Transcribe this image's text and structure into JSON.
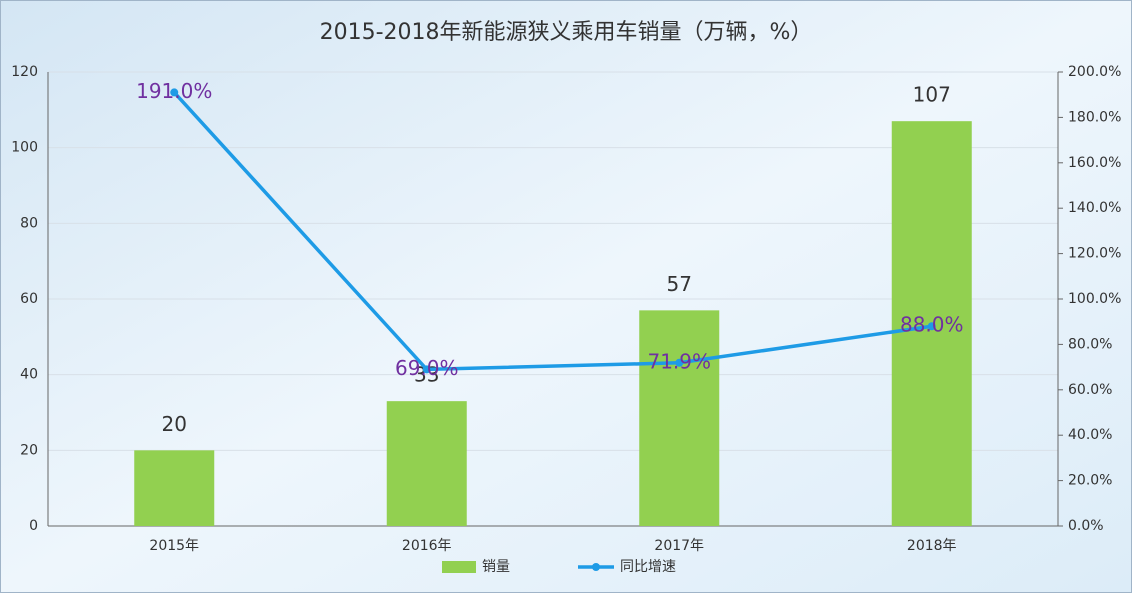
{
  "chart_data": {
    "type": "bar",
    "title": "2015-2018年新能源狭义乘用车销量（万辆，%）",
    "categories": [
      "2015年",
      "2016年",
      "2017年",
      "2018年"
    ],
    "series": [
      {
        "name": "销量",
        "color": "#92d050",
        "values": [
          20,
          33,
          57,
          107
        ]
      },
      {
        "name": "同比增速",
        "color": "#1e9be6",
        "type": "line",
        "axis": "y2",
        "values": [
          191.0,
          69.0,
          71.9,
          88.0
        ],
        "value_labels": [
          "191.0%",
          "69.0%",
          "71.9%",
          "88.0%"
        ],
        "label_color": "#7030a0"
      }
    ],
    "ylim": [
      0,
      120
    ],
    "yticks": [
      0,
      20,
      40,
      60,
      80,
      100,
      120
    ],
    "y2lim": [
      0,
      200
    ],
    "y2ticks": [
      {
        "value": 0,
        "label": "0.0%"
      },
      {
        "value": 20,
        "label": "20.0%"
      },
      {
        "value": 40,
        "label": "40.0%"
      },
      {
        "value": 60,
        "label": "60.0%"
      },
      {
        "value": 80,
        "label": "80.0%"
      },
      {
        "value": 100,
        "label": "100.0%"
      },
      {
        "value": 120,
        "label": "120.0%"
      },
      {
        "value": 140,
        "label": "140.0%"
      },
      {
        "value": 160,
        "label": "160.0%"
      },
      {
        "value": 180,
        "label": "180.0%"
      },
      {
        "value": 200,
        "label": "200.0%"
      }
    ],
    "grid": true
  }
}
